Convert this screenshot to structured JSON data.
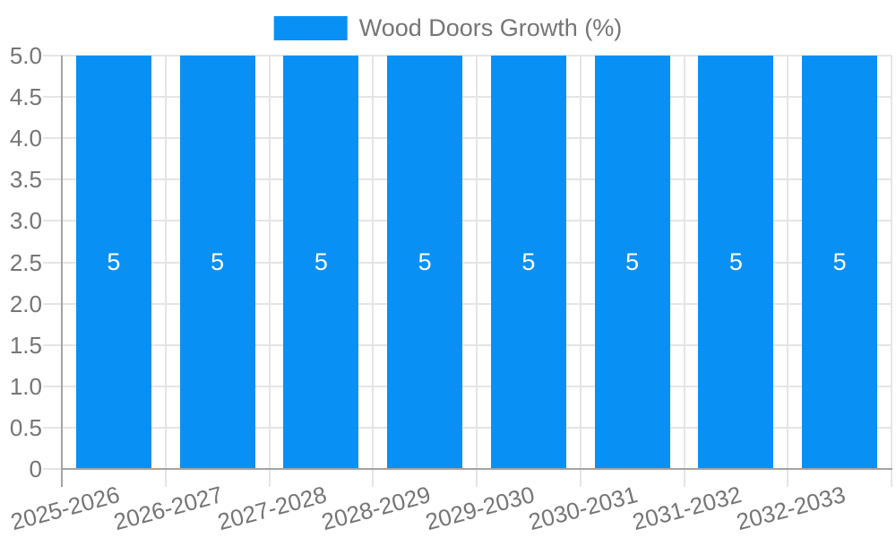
{
  "colors": {
    "bar": "#0990f5",
    "grid": "#e5e5e5",
    "axis": "#a3a3a3",
    "tick_text": "#757575",
    "bar_label_text": "#ffffff",
    "background": "#ffffff"
  },
  "chart_data": {
    "type": "bar",
    "title": "",
    "xlabel": "",
    "ylabel": "",
    "categories": [
      "2025-2026",
      "2026-2027",
      "2027-2028",
      "2028-2029",
      "2029-2030",
      "2030-2031",
      "2031-2032",
      "2032-2033"
    ],
    "values": [
      5,
      5,
      5,
      5,
      5,
      5,
      5,
      5
    ],
    "bar_labels": [
      "5",
      "5",
      "5",
      "5",
      "5",
      "5",
      "5",
      "5"
    ],
    "series": [
      {
        "name": "Wood Doors Growth (%)",
        "values": [
          5,
          5,
          5,
          5,
          5,
          5,
          5,
          5
        ]
      }
    ],
    "ylim": [
      0,
      5
    ],
    "yticks": [
      0,
      0.5,
      1,
      1.5,
      2,
      2.5,
      3,
      3.5,
      4,
      4.5,
      5
    ],
    "ytick_labels": [
      "0",
      "0.5",
      "1.0",
      "1.5",
      "2.0",
      "2.5",
      "3.0",
      "3.5",
      "4.0",
      "4.5",
      "5.0"
    ],
    "grid": true,
    "legend": {
      "label": "Wood Doors Growth (%)",
      "position": "top-center"
    }
  }
}
